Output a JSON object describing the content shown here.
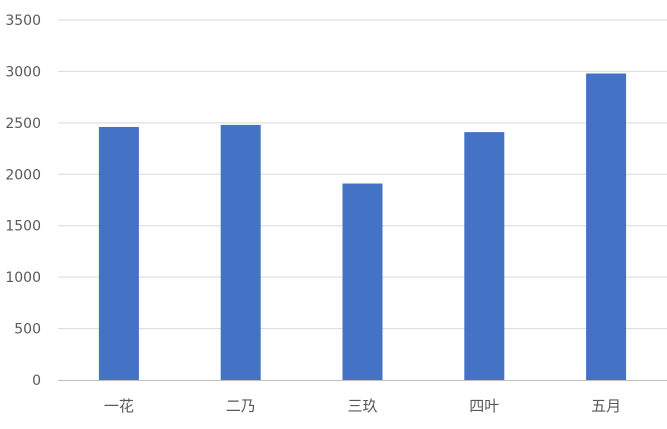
{
  "chart_data": {
    "type": "bar",
    "title": "",
    "xlabel": "",
    "ylabel": "",
    "categories": [
      "一花",
      "二乃",
      "三玖",
      "四叶",
      "五月"
    ],
    "values": [
      2460,
      2480,
      1910,
      2410,
      2980
    ],
    "ylim": [
      0,
      3500
    ],
    "y_ticks": [
      "0",
      "500",
      "1000",
      "1500",
      "2000",
      "2500",
      "3000",
      "3500"
    ],
    "grid": true,
    "legend": "none",
    "colors": {
      "bar": "#4472C4",
      "grid": "#D9D9D9",
      "axis": "#BFBFBF",
      "tick_text": "#595959"
    }
  }
}
